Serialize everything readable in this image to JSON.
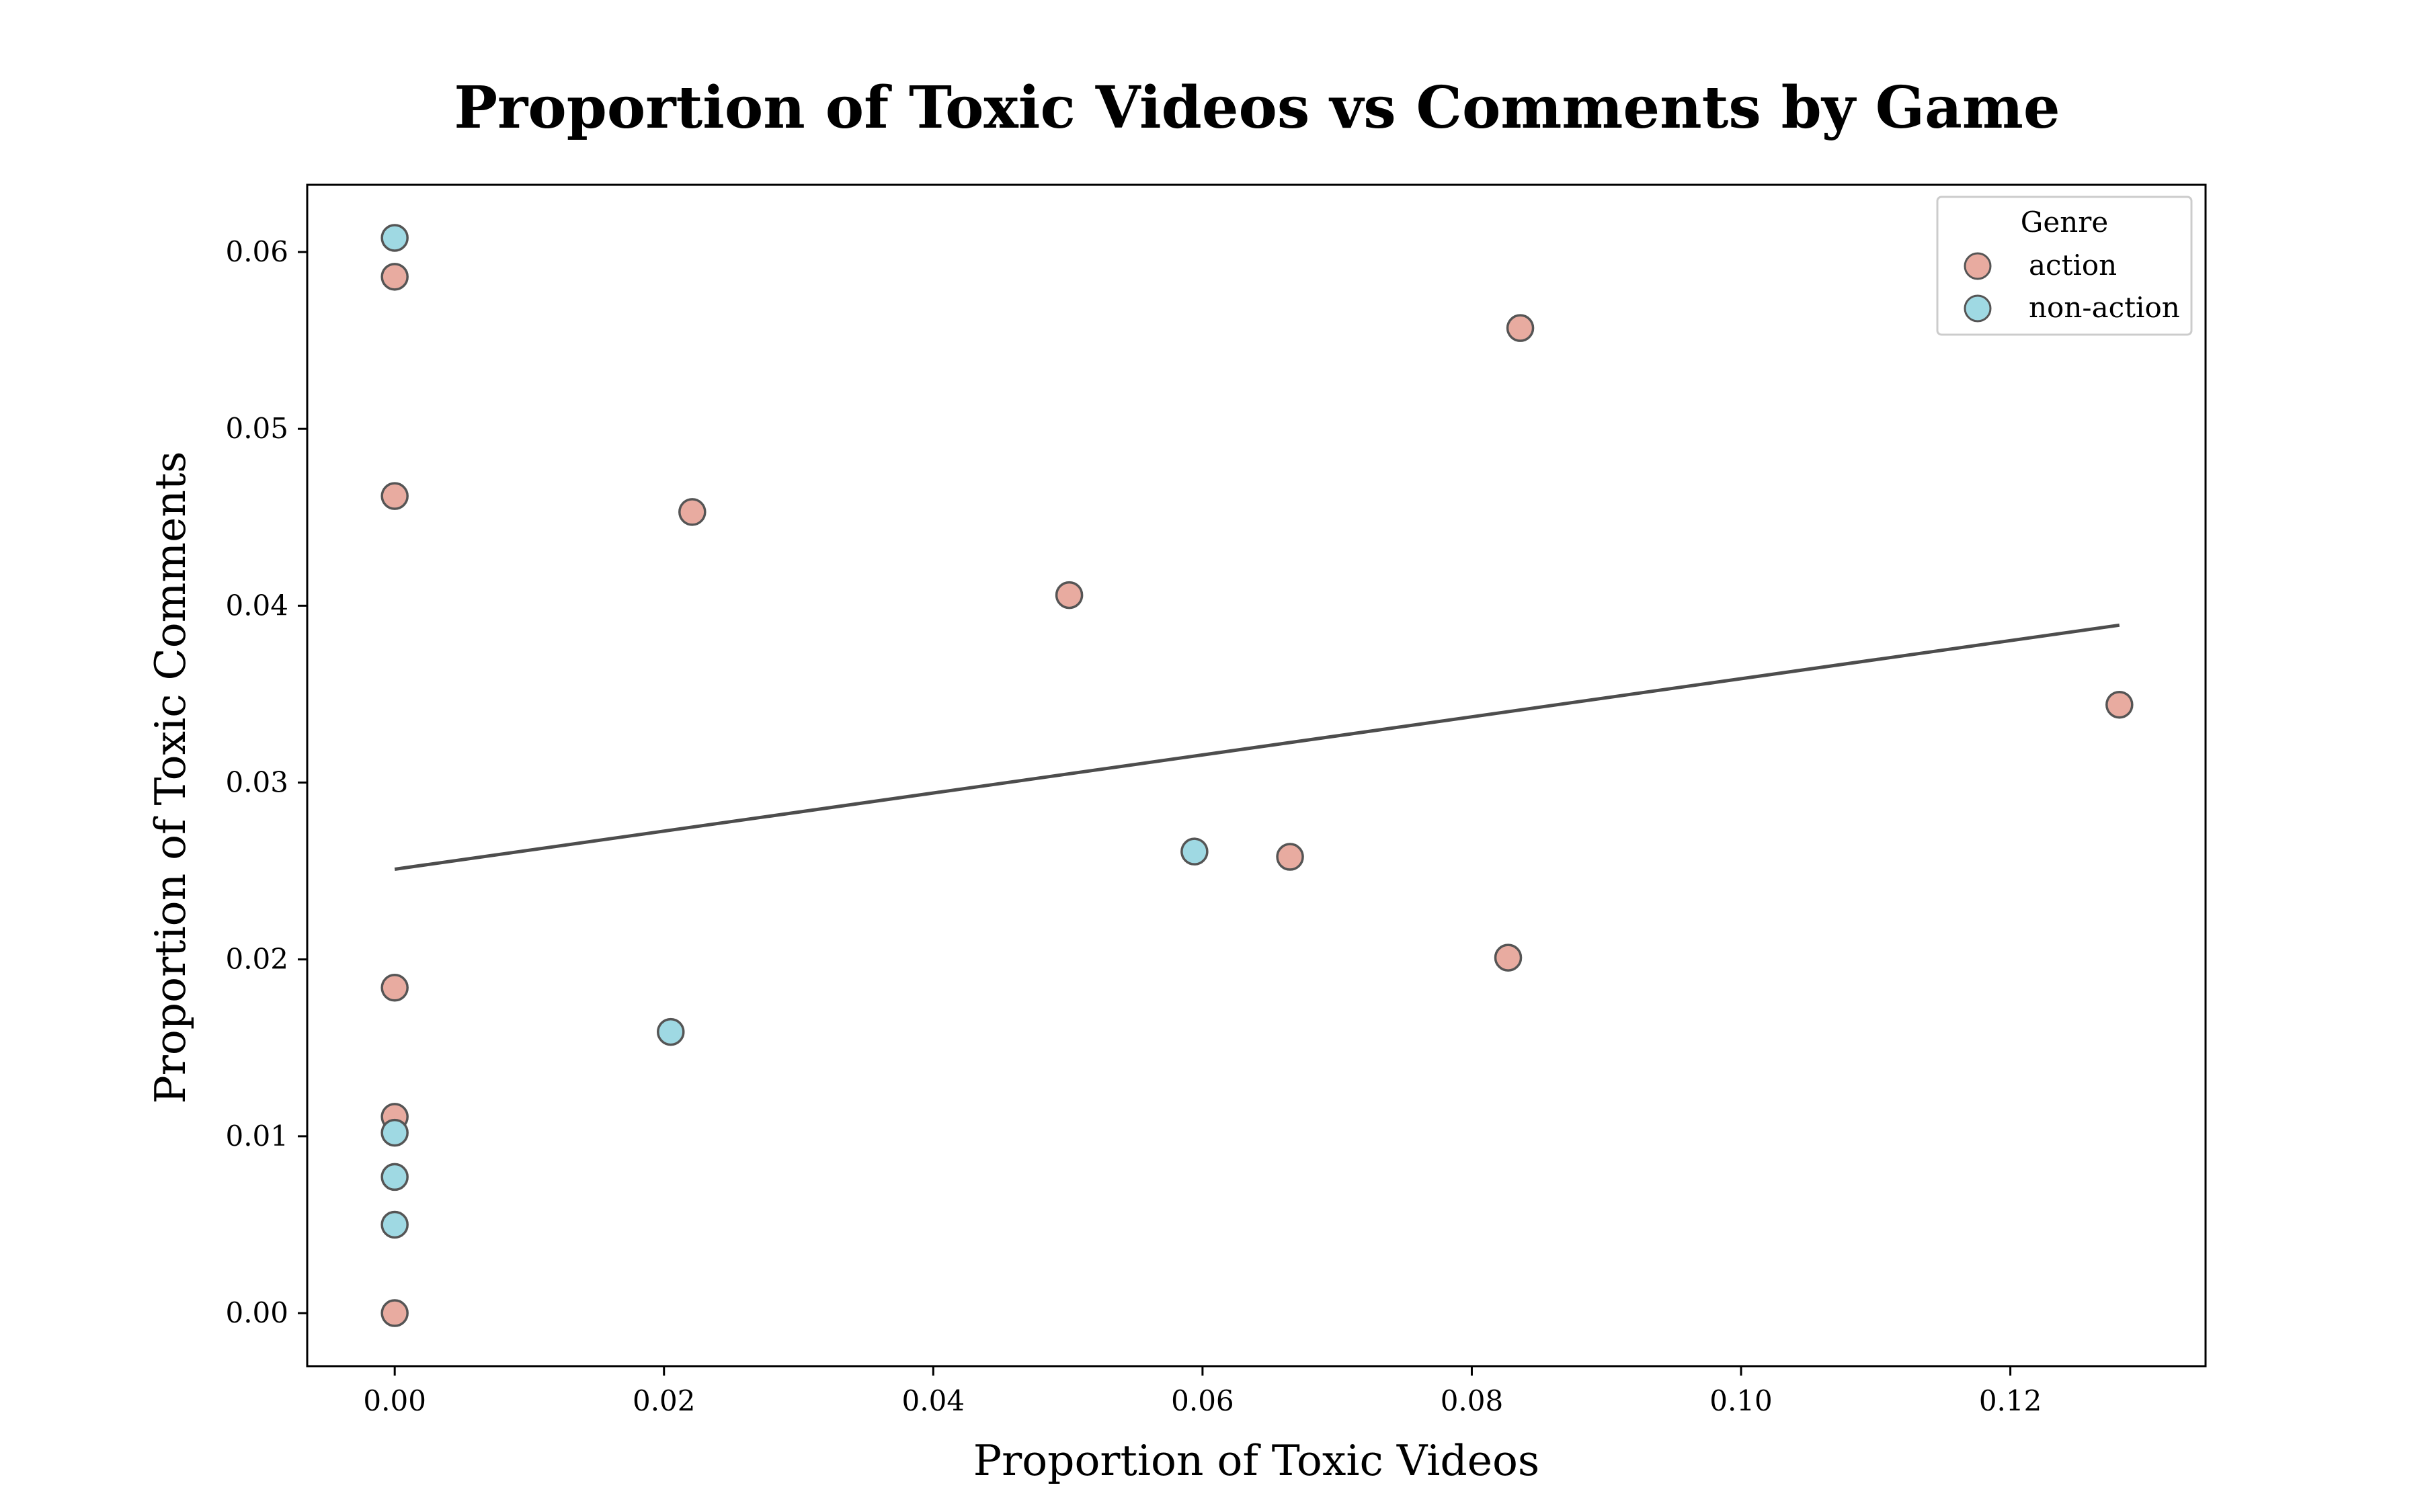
{
  "chart_data": {
    "type": "scatter",
    "title": "Proportion of Toxic Videos vs Comments by Game",
    "xlabel": "Proportion of Toxic Videos",
    "ylabel": "Proportion of Toxic Comments",
    "xlim": [
      -0.0065,
      0.1345
    ],
    "ylim": [
      -0.003,
      0.0638
    ],
    "xticks": [
      0.0,
      0.02,
      0.04,
      0.06,
      0.08,
      0.1,
      0.12
    ],
    "xtick_labels": [
      "0.00",
      "0.02",
      "0.04",
      "0.06",
      "0.08",
      "0.10",
      "0.12"
    ],
    "yticks": [
      0.0,
      0.01,
      0.02,
      0.03,
      0.04,
      0.05,
      0.06
    ],
    "ytick_labels": [
      "0.00",
      "0.01",
      "0.02",
      "0.03",
      "0.04",
      "0.05",
      "0.06"
    ],
    "grid": false,
    "legend": {
      "title": "Genre",
      "placement": "top-right"
    },
    "series": [
      {
        "name": "action",
        "color": "#e8aba0",
        "points": [
          {
            "x": 0.0,
            "y": 0.0586
          },
          {
            "x": 0.0,
            "y": 0.0462
          },
          {
            "x": 0.0,
            "y": 0.0184
          },
          {
            "x": 0.0,
            "y": 0.0111
          },
          {
            "x": 0.0,
            "y": 0.0
          },
          {
            "x": 0.0221,
            "y": 0.0453
          },
          {
            "x": 0.0501,
            "y": 0.0406
          },
          {
            "x": 0.0665,
            "y": 0.0258
          },
          {
            "x": 0.0827,
            "y": 0.0201
          },
          {
            "x": 0.0836,
            "y": 0.0557
          },
          {
            "x": 0.1281,
            "y": 0.0344
          }
        ]
      },
      {
        "name": "non-action",
        "color": "#9fd9e3",
        "points": [
          {
            "x": 0.0,
            "y": 0.0608
          },
          {
            "x": 0.0,
            "y": 0.0102
          },
          {
            "x": 0.0,
            "y": 0.0077
          },
          {
            "x": 0.0,
            "y": 0.005
          },
          {
            "x": 0.0205,
            "y": 0.0159
          },
          {
            "x": 0.0594,
            "y": 0.0261
          }
        ]
      }
    ],
    "trendline": {
      "color": "#4d4d4d",
      "x": [
        0.0,
        0.1281
      ],
      "y": [
        0.0251,
        0.0389
      ]
    },
    "marker_edge_color": "#555555"
  }
}
